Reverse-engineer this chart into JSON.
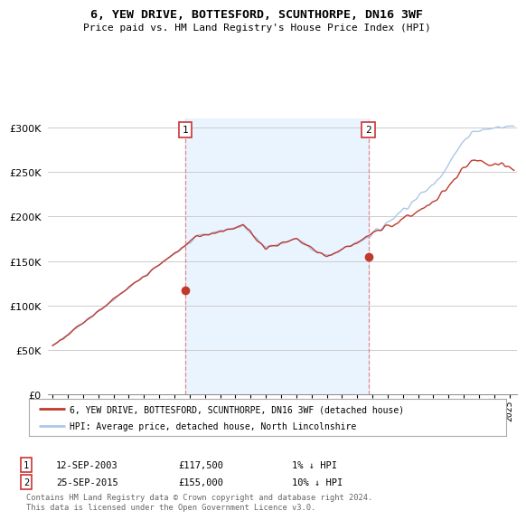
{
  "title": "6, YEW DRIVE, BOTTESFORD, SCUNTHORPE, DN16 3WF",
  "subtitle": "Price paid vs. HM Land Registry's House Price Index (HPI)",
  "legend_line1": "6, YEW DRIVE, BOTTESFORD, SCUNTHORPE, DN16 3WF (detached house)",
  "legend_line2": "HPI: Average price, detached house, North Lincolnshire",
  "sale1_date": "12-SEP-2003",
  "sale1_price": "£117,500",
  "sale1_hpi": "1% ↓ HPI",
  "sale2_date": "25-SEP-2015",
  "sale2_price": "£155,000",
  "sale2_hpi": "10% ↓ HPI",
  "footer": "Contains HM Land Registry data © Crown copyright and database right 2024.\nThis data is licensed under the Open Government Licence v3.0.",
  "hpi_color": "#aec6e8",
  "price_color": "#c0392b",
  "sale_marker_color": "#c0392b",
  "dashed_line_color": "#e07070",
  "shade_color": "#ddeeff",
  "background_color": "#ffffff",
  "grid_color": "#cccccc",
  "ylim": [
    0,
    310000
  ],
  "yticks": [
    0,
    50000,
    100000,
    150000,
    200000,
    250000,
    300000
  ],
  "xlim_start": 1994.7,
  "xlim_end": 2025.5,
  "sale1_x": 2003.71,
  "sale1_y": 117500,
  "sale2_x": 2015.73,
  "sale2_y": 155000,
  "n_points": 500
}
